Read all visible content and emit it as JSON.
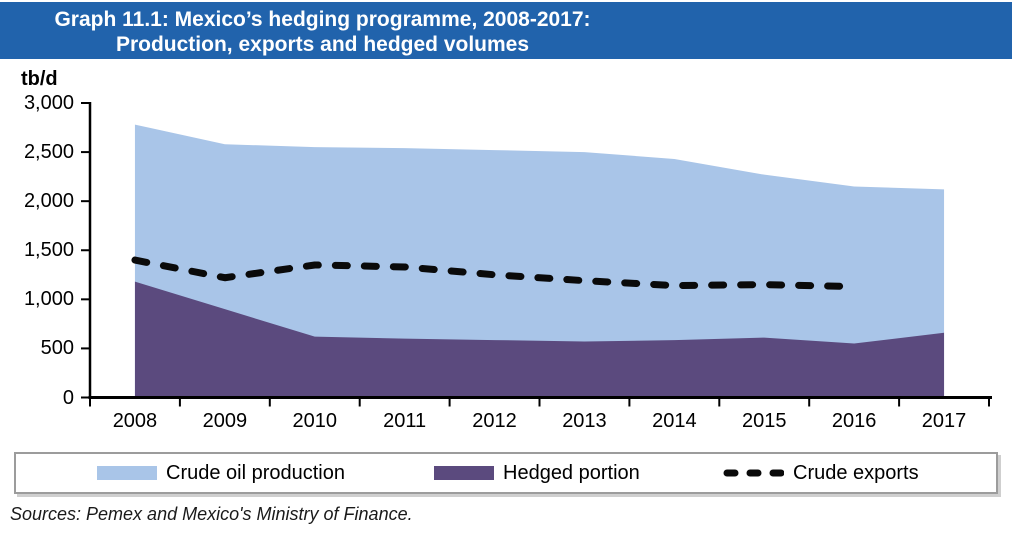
{
  "page": {
    "title_line1": "Graph 11.1: Mexico’s hedging programme, 2008-2017:",
    "title_line2": "Production, exports and hedged volumes",
    "unit_label": "tb/d",
    "source_note": "Sources: Pemex and Mexico's Ministry of Finance."
  },
  "colors": {
    "title_bar": "#2163AC",
    "production_fill": "#A9C5E8",
    "hedged_fill": "#5B4A7E",
    "exports_line": "#0a0a0a",
    "axis": "#000000",
    "legend_border": "#9c9c9c"
  },
  "legend": {
    "items": [
      {
        "label": "Crude oil production",
        "swatch": "area",
        "color": "#A9C5E8"
      },
      {
        "label": "Hedged portion",
        "swatch": "area",
        "color": "#5B4A7E"
      },
      {
        "label": "Crude exports",
        "swatch": "dashed-line",
        "color": "#0a0a0a"
      }
    ]
  },
  "chart_data": {
    "type": "area",
    "title": "Mexico's hedging programme, 2008-2017: Production, exports and hedged volumes",
    "xlabel": "",
    "ylabel": "tb/d",
    "categories": [
      "2008",
      "2009",
      "2010",
      "2011",
      "2012",
      "2013",
      "2014",
      "2015",
      "2016",
      "2017"
    ],
    "series": [
      {
        "name": "Crude oil production",
        "type": "area",
        "color": "#A9C5E8",
        "values": [
          2780,
          2580,
          2550,
          2540,
          2520,
          2500,
          2430,
          2270,
          2150,
          2120
        ]
      },
      {
        "name": "Hedged portion",
        "type": "area",
        "color": "#5B4A7E",
        "values": [
          1180,
          900,
          620,
          600,
          585,
          570,
          585,
          610,
          550,
          660
        ]
      },
      {
        "name": "Crude exports",
        "type": "dashed-line",
        "color": "#0a0a0a",
        "values": [
          1400,
          1220,
          1350,
          1330,
          1250,
          1190,
          1140,
          1150,
          1130,
          null
        ]
      }
    ],
    "ylim": [
      0,
      3000
    ],
    "y_ticks": [
      "0",
      "500",
      "1,000",
      "1,500",
      "2,000",
      "2,500",
      "3,000"
    ],
    "grid": false,
    "legend_position": "bottom"
  }
}
